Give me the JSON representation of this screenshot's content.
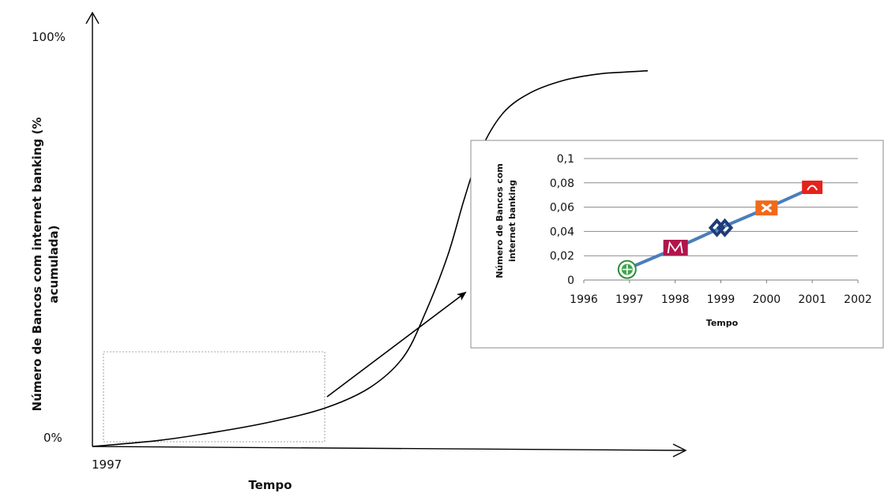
{
  "main_chart": {
    "y_top_label": "100%",
    "y_bottom_label": "0%",
    "x_start_label": "1997",
    "xlabel": "Tempo",
    "ylabel_line1": "Número de Bancos com internet banking (%",
    "ylabel_line2": "acumulada)"
  },
  "chart_data": [
    {
      "type": "line",
      "series": [
        {
          "values_y_percent": [
            0,
            1.5,
            3.5,
            6,
            9.5,
            14.5,
            22,
            33,
            47,
            61,
            73,
            82,
            87,
            90,
            91.5,
            92,
            92.3
          ],
          "x_fraction": [
            0,
            0.12,
            0.22,
            0.32,
            0.42,
            0.5,
            0.56,
            0.6,
            0.64,
            0.67,
            0.7,
            0.74,
            0.79,
            0.85,
            0.91,
            0.96,
            1.0
          ]
        }
      ],
      "ylim": [
        0,
        100
      ],
      "grid": false
    },
    {
      "type": "line",
      "x": [
        1997,
        1998,
        1999,
        2000,
        2001
      ],
      "series": [
        {
          "values": [
            0.01,
            0.026,
            0.043,
            0.059,
            0.076
          ],
          "color": "#4a7ebb",
          "markers": [
            "green-bank-logo",
            "millennium-m-logo",
            "cgd-logo",
            "orange-bank-logo",
            "santander-logo"
          ]
        }
      ],
      "xticks": [
        "1996",
        "1997",
        "1998",
        "1999",
        "2000",
        "2001",
        "2002"
      ],
      "yticks": [
        "0",
        "0,02",
        "0,04",
        "0,06",
        "0,08",
        "0,1"
      ],
      "xlim": [
        1996,
        2002
      ],
      "ylim": [
        0,
        0.1
      ],
      "xlabel": "Tempo",
      "ylabel_line1": "Número de Bancos com",
      "ylabel_line2": "internet banking",
      "grid": true
    }
  ]
}
